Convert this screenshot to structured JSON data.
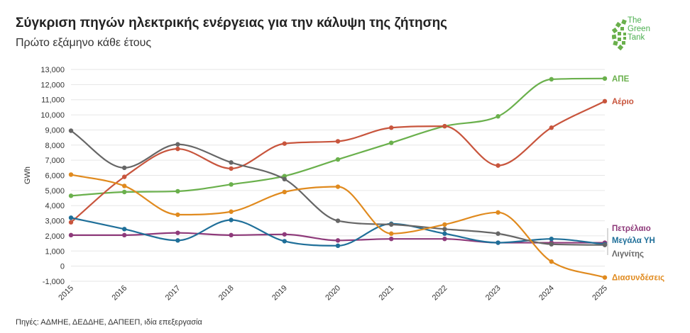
{
  "header": {
    "title": "Σύγκριση πηγών ηλεκτρικής ενέργειας για την κάλυψη της ζήτησης",
    "subtitle": "Πρώτο εξάμηνο κάθε έτους"
  },
  "logo": {
    "line1": "The",
    "line2": "Green",
    "line3": "Tank",
    "color": "#4caf50"
  },
  "source": "Πηγές: ΑΔΜΗΕ, ΔΕΔΔΗΕ, ΔΑΠΕΕΠ, ιδία επεξεργασία",
  "chart_data": {
    "type": "line",
    "title": "Σύγκριση πηγών ηλεκτρικής ενέργειας για την κάλυψη της ζήτησης",
    "subtitle": "Πρώτο εξάμηνο κάθε έτους",
    "xlabel": "",
    "ylabel": "GWh",
    "ylim": [
      -1000,
      13000
    ],
    "y_ticks": [
      "-1,000",
      "0",
      "1,000",
      "2,000",
      "3,000",
      "4,000",
      "5,000",
      "6,000",
      "7,000",
      "8,000",
      "9,000",
      "10,000",
      "11,000",
      "12,000",
      "13,000"
    ],
    "grid": true,
    "legend": "inline-right",
    "x": [
      "2015",
      "2016",
      "2017",
      "2018",
      "2019",
      "2020",
      "2021",
      "2022",
      "2023",
      "2024",
      "2025"
    ],
    "series": [
      {
        "name": "ΑΠΕ",
        "color": "#6ab04c",
        "values": [
          4650,
          4900,
          4950,
          5400,
          5950,
          7050,
          8150,
          9250,
          9900,
          12350,
          12400
        ]
      },
      {
        "name": "Αέριο",
        "color": "#c8553d",
        "values": [
          2900,
          5900,
          7750,
          6450,
          8100,
          8250,
          9150,
          9250,
          6650,
          9150,
          10900
        ]
      },
      {
        "name": "Πετρέλαιο",
        "color": "#8e3a7a",
        "values": [
          2050,
          2050,
          2200,
          2050,
          2100,
          1700,
          1800,
          1800,
          1550,
          1550,
          1550
        ]
      },
      {
        "name": "Μεγάλα ΥΗ",
        "color": "#1f6f99",
        "values": [
          3200,
          2450,
          1700,
          3050,
          1650,
          1350,
          2800,
          2150,
          1550,
          1800,
          1450
        ]
      },
      {
        "name": "Λιγνίτης",
        "color": "#666666",
        "values": [
          8950,
          6500,
          8050,
          6850,
          5750,
          3000,
          2750,
          2450,
          2150,
          1450,
          1400
        ]
      },
      {
        "name": "Διασυνδέσεις",
        "color": "#e08a1e",
        "values": [
          6050,
          5300,
          3400,
          3600,
          4900,
          5250,
          2150,
          2750,
          3550,
          300,
          -750
        ]
      }
    ]
  }
}
